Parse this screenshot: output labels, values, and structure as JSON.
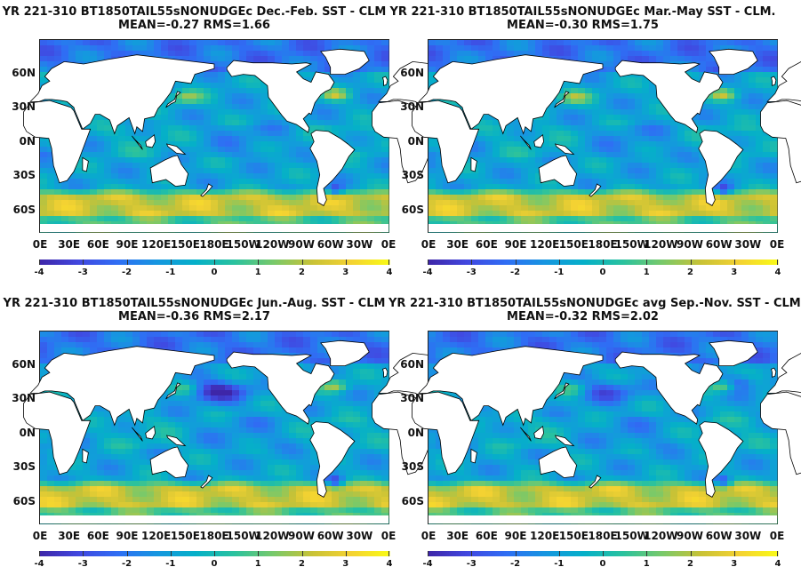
{
  "chart_data": [
    {
      "type": "heatmap",
      "title_line1": "YR 221-310 BT1850TAIL55sNONUDGEc  Dec.-Feb. SST - CLM",
      "title_line2": "MEAN=-0.27   RMS=1.66",
      "mean": -0.27,
      "rms": 1.66,
      "season": "Dec.-Feb."
    },
    {
      "type": "heatmap",
      "title_line1": "YR 221-310 BT1850TAIL55sNONUDGEc Mar.-May SST - CLM.",
      "title_line2": "MEAN=-0.30   RMS=1.75",
      "mean": -0.3,
      "rms": 1.75,
      "season": "Mar.-May"
    },
    {
      "type": "heatmap",
      "title_line1": "YR 221-310 BT1850TAIL55sNONUDGEc Jun.-Aug. SST - CLM",
      "title_line2": "MEAN=-0.36   RMS=2.17",
      "mean": -0.36,
      "rms": 2.17,
      "season": "Jun.-Aug."
    },
    {
      "type": "heatmap",
      "title_line1": "YR 221-310 BT1850TAIL55sNONUDGEc avg Sep.-Nov. SST - CLM",
      "title_line2": "MEAN=-0.32   RMS=2.02",
      "mean": -0.32,
      "rms": 2.02,
      "season": "Sep.-Nov."
    }
  ],
  "axes": {
    "lat_ticks": [
      "60N",
      "30N",
      "0N",
      "30S",
      "60S"
    ],
    "lat_values": [
      60,
      30,
      0,
      -30,
      -60
    ],
    "lat_range": [
      -78,
      90
    ],
    "lon_ticks": [
      "0E",
      "30E",
      "60E",
      "90E",
      "120E",
      "150E",
      "180E",
      "150W",
      "120W",
      "90W",
      "60W",
      "30W",
      "0E"
    ],
    "lon_values": [
      0,
      30,
      60,
      90,
      120,
      150,
      180,
      210,
      240,
      270,
      300,
      330,
      360
    ],
    "lon_range": [
      0,
      360
    ],
    "colorbar_ticks": [
      "-4",
      "-3",
      "-2",
      "-1",
      "0",
      "1",
      "2",
      "3",
      "4"
    ],
    "colorbar_values": [
      -4,
      -3,
      -2,
      -1,
      0,
      1,
      2,
      3,
      4
    ],
    "colorbar_range": [
      -4,
      4
    ],
    "colormap": "parula"
  },
  "colors": {
    "land": "#ffffff",
    "coast": "#000000",
    "cmap_stops": [
      "#3e26a8",
      "#4148e0",
      "#2f6ef4",
      "#1696e0",
      "#05b0c8",
      "#2ac29e",
      "#78c96a",
      "#c8c236",
      "#f4d232",
      "#f9fb15"
    ]
  }
}
